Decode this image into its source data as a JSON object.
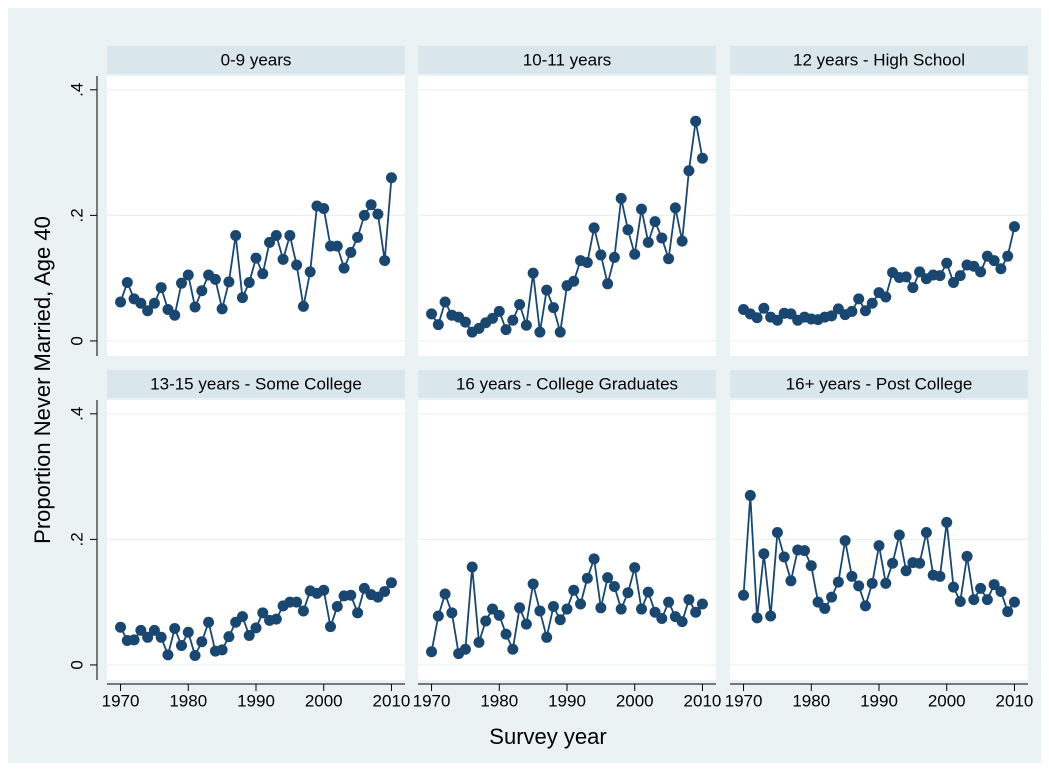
{
  "chart_data": {
    "type": "line",
    "ylabel": "Proportion Never Married, Age 40",
    "xlabel": "Survey year",
    "x": [
      1970,
      1971,
      1972,
      1973,
      1974,
      1975,
      1976,
      1977,
      1978,
      1979,
      1980,
      1981,
      1982,
      1983,
      1984,
      1985,
      1986,
      1987,
      1988,
      1989,
      1990,
      1991,
      1992,
      1993,
      1994,
      1995,
      1996,
      1997,
      1998,
      1999,
      2000,
      2001,
      2002,
      2003,
      2004,
      2005,
      2006,
      2007,
      2008,
      2009,
      2010
    ],
    "xlim": [
      1968,
      2012
    ],
    "xticks": [
      1970,
      1980,
      1990,
      2000,
      2010
    ],
    "ylim": [
      -0.024,
      0.422
    ],
    "yticks": [
      0,
      {
        "value": 0.2,
        "label": ".2"
      },
      {
        "value": 0.4,
        "label": ".4"
      }
    ],
    "grid": true,
    "series": [
      {
        "name": "0-9 years",
        "color": "#1a476f",
        "values": [
          0.062,
          0.093,
          0.067,
          0.06,
          0.048,
          0.06,
          0.085,
          0.05,
          0.041,
          0.092,
          0.105,
          0.054,
          0.08,
          0.105,
          0.098,
          0.051,
          0.094,
          0.168,
          0.069,
          0.093,
          0.132,
          0.107,
          0.157,
          0.168,
          0.13,
          0.168,
          0.121,
          0.055,
          0.11,
          0.215,
          0.211,
          0.151,
          0.151,
          0.116,
          0.141,
          0.165,
          0.2,
          0.217,
          0.202,
          0.128,
          0.26
        ]
      },
      {
        "name": "10-11 years",
        "color": "#1a476f",
        "values": [
          0.043,
          0.026,
          0.062,
          0.041,
          0.038,
          0.03,
          0.014,
          0.02,
          0.029,
          0.036,
          0.047,
          0.018,
          0.033,
          0.058,
          0.025,
          0.108,
          0.014,
          0.081,
          0.053,
          0.014,
          0.088,
          0.095,
          0.128,
          0.125,
          0.18,
          0.137,
          0.091,
          0.133,
          0.227,
          0.177,
          0.138,
          0.21,
          0.157,
          0.19,
          0.164,
          0.131,
          0.212,
          0.159,
          0.271,
          0.35,
          0.291
        ]
      },
      {
        "name": "12 years - High School",
        "color": "#1a476f",
        "values": [
          0.05,
          0.043,
          0.037,
          0.052,
          0.038,
          0.033,
          0.044,
          0.043,
          0.033,
          0.038,
          0.035,
          0.034,
          0.038,
          0.04,
          0.051,
          0.042,
          0.047,
          0.067,
          0.048,
          0.06,
          0.077,
          0.07,
          0.109,
          0.101,
          0.102,
          0.085,
          0.11,
          0.099,
          0.105,
          0.104,
          0.124,
          0.093,
          0.104,
          0.121,
          0.119,
          0.11,
          0.135,
          0.128,
          0.115,
          0.135,
          0.182
        ]
      },
      {
        "name": "13-15 years - Some College",
        "color": "#1a476f",
        "values": [
          0.06,
          0.039,
          0.04,
          0.055,
          0.044,
          0.055,
          0.044,
          0.016,
          0.058,
          0.031,
          0.052,
          0.015,
          0.037,
          0.068,
          0.022,
          0.024,
          0.045,
          0.068,
          0.077,
          0.047,
          0.059,
          0.083,
          0.071,
          0.073,
          0.094,
          0.1,
          0.1,
          0.086,
          0.118,
          0.114,
          0.119,
          0.061,
          0.093,
          0.11,
          0.111,
          0.083,
          0.122,
          0.112,
          0.108,
          0.117,
          0.131
        ]
      },
      {
        "name": "16 years - College Graduates",
        "color": "#1a476f",
        "values": [
          0.021,
          0.078,
          0.113,
          0.083,
          0.018,
          0.025,
          0.156,
          0.036,
          0.07,
          0.089,
          0.079,
          0.049,
          0.025,
          0.091,
          0.065,
          0.129,
          0.086,
          0.044,
          0.093,
          0.072,
          0.089,
          0.119,
          0.097,
          0.138,
          0.169,
          0.091,
          0.139,
          0.125,
          0.089,
          0.115,
          0.155,
          0.089,
          0.116,
          0.084,
          0.074,
          0.1,
          0.077,
          0.069,
          0.104,
          0.084,
          0.097
        ]
      },
      {
        "name": "16+ years - Post College",
        "color": "#1a476f",
        "values": [
          0.111,
          0.27,
          0.075,
          0.177,
          0.078,
          0.211,
          0.172,
          0.134,
          0.183,
          0.182,
          0.158,
          0.1,
          0.09,
          0.108,
          0.132,
          0.198,
          0.141,
          0.126,
          0.094,
          0.13,
          0.19,
          0.13,
          0.162,
          0.207,
          0.15,
          0.163,
          0.162,
          0.211,
          0.143,
          0.141,
          0.227,
          0.124,
          0.101,
          0.173,
          0.104,
          0.122,
          0.104,
          0.128,
          0.117,
          0.085,
          0.1
        ]
      }
    ]
  }
}
